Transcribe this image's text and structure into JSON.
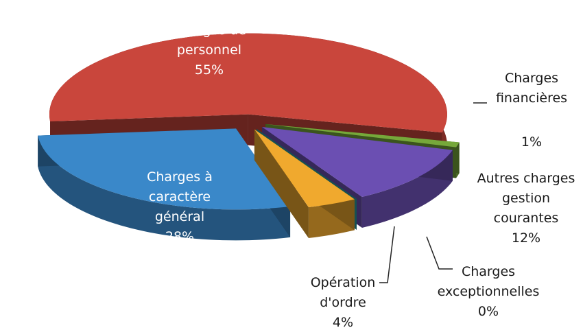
{
  "chart_data": {
    "type": "pie",
    "categories": [
      "Charges de personnel",
      "Charges financières",
      "Autres charges gestion courantes",
      "Charges exceptionnelles",
      "Opération d'ordre",
      "Charges à caractère général"
    ],
    "values": [
      55,
      1,
      12,
      0,
      4,
      28
    ],
    "value_labels": [
      "55%",
      "1%",
      "12%",
      "0%",
      "4%",
      "28%"
    ],
    "colors": [
      "#c9463c",
      "#76a83a",
      "#6b4fb2",
      "#2b9fa3",
      "#f0a92e",
      "#3a88c9"
    ]
  }
}
